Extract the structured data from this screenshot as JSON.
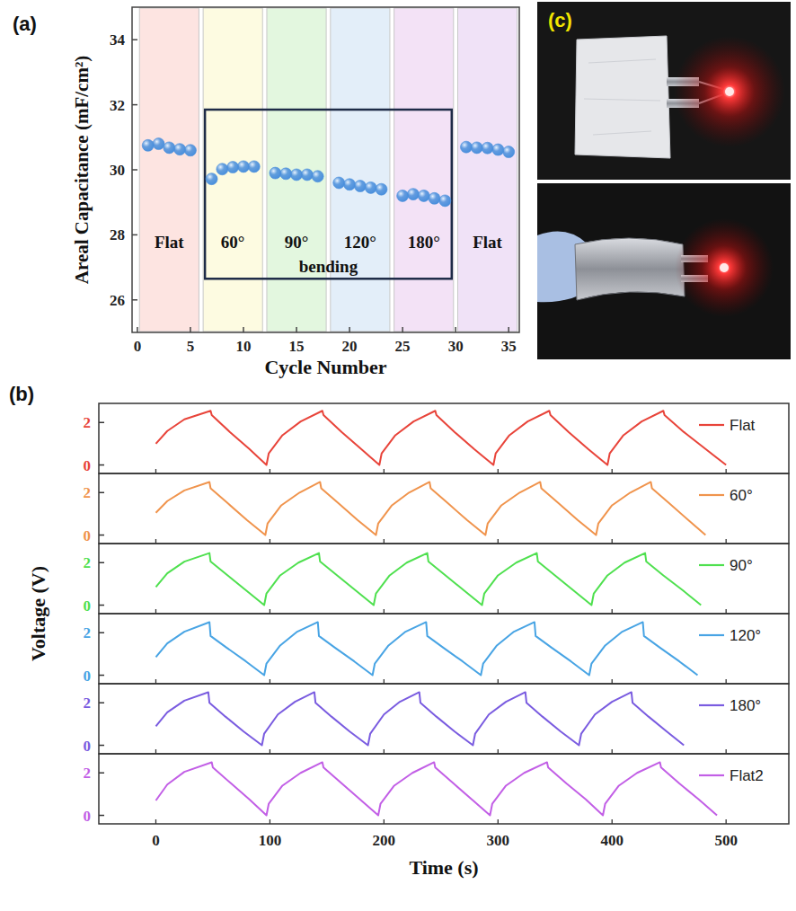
{
  "chart_data": [
    {
      "type": "scatter",
      "label": "(a)",
      "x_label": "Cycle Number",
      "y_label": "Areal Capacitance (mF/cm²)",
      "xlim": [
        -0.5,
        36
      ],
      "ylim": [
        25,
        35
      ],
      "xticks": [
        0,
        5,
        10,
        15,
        20,
        25,
        30,
        35
      ],
      "yticks": [
        26,
        28,
        30,
        32,
        34
      ],
      "color": "#4a8fdc",
      "marker": "circle",
      "annotations": [
        "bending"
      ],
      "series": [
        {
          "name": "Flat",
          "color": "#fde4e1",
          "x": [
            1,
            2,
            3,
            4,
            5
          ],
          "values": [
            30.75,
            30.8,
            30.68,
            30.63,
            30.6
          ]
        },
        {
          "name": "60°",
          "color": "#fdfbe1",
          "x": [
            7,
            8,
            9,
            10,
            11
          ],
          "values": [
            29.72,
            30.02,
            30.08,
            30.1,
            30.1
          ]
        },
        {
          "name": "90°",
          "color": "#e3f7df",
          "x": [
            13,
            14,
            15,
            16,
            17
          ],
          "values": [
            29.9,
            29.88,
            29.85,
            29.85,
            29.8
          ]
        },
        {
          "name": "120°",
          "color": "#e3eef9",
          "x": [
            19,
            20,
            21,
            22,
            23
          ],
          "values": [
            29.6,
            29.55,
            29.5,
            29.45,
            29.4
          ]
        },
        {
          "name": "180°",
          "color": "#f3e2f6",
          "x": [
            25,
            26,
            27,
            28,
            29
          ],
          "values": [
            29.2,
            29.25,
            29.2,
            29.12,
            29.05
          ]
        },
        {
          "name": "Flat",
          "color": "#f0e2f7",
          "x": [
            31,
            32,
            33,
            34,
            35
          ],
          "values": [
            30.7,
            30.68,
            30.67,
            30.62,
            30.55
          ]
        }
      ]
    },
    {
      "type": "line",
      "label": "(b)",
      "x_label": "Time (s)",
      "y_label": "Voltage (V)",
      "xlim": [
        -50,
        555
      ],
      "ylim": [
        -0.4,
        2.9
      ],
      "xticks": [
        0,
        100,
        200,
        300,
        400,
        500
      ],
      "yticks": [
        0,
        2
      ],
      "legend": "upper right",
      "series": [
        {
          "name": "Flat",
          "color": "#e8443a",
          "x": [
            0,
            10,
            25,
            48,
            49,
            65,
            82,
            97,
            99,
            111,
            127,
            146,
            147,
            163,
            180,
            196,
            198,
            210,
            226,
            245,
            246,
            262,
            279,
            296,
            298,
            310,
            326,
            345,
            346,
            362,
            379,
            396,
            398,
            410,
            426,
            445,
            446,
            463,
            482,
            500
          ],
          "values": [
            1.0,
            1.6,
            2.15,
            2.55,
            2.35,
            1.55,
            0.75,
            0,
            0.55,
            1.4,
            2.05,
            2.55,
            2.35,
            1.55,
            0.75,
            0,
            0.55,
            1.4,
            2.05,
            2.55,
            2.35,
            1.55,
            0.75,
            0,
            0.55,
            1.4,
            2.05,
            2.55,
            2.35,
            1.55,
            0.75,
            0,
            0.55,
            1.4,
            2.05,
            2.55,
            2.35,
            1.55,
            0.75,
            0
          ]
        },
        {
          "name": "60°",
          "color": "#f0944d",
          "x": [
            0,
            10,
            25,
            47,
            48,
            63,
            80,
            96,
            98,
            110,
            126,
            144,
            145,
            160,
            177,
            193,
            195,
            207,
            222,
            240,
            241,
            256,
            273,
            289,
            291,
            303,
            319,
            337,
            338,
            353,
            370,
            386,
            388,
            400,
            416,
            434,
            435,
            450,
            467,
            482
          ],
          "values": [
            1.05,
            1.6,
            2.1,
            2.5,
            2.2,
            1.5,
            0.7,
            0,
            0.55,
            1.4,
            2.0,
            2.5,
            2.2,
            1.5,
            0.7,
            0,
            0.55,
            1.4,
            2.0,
            2.5,
            2.2,
            1.5,
            0.7,
            0,
            0.55,
            1.4,
            2.0,
            2.5,
            2.2,
            1.5,
            0.7,
            0,
            0.55,
            1.4,
            2.0,
            2.5,
            2.2,
            1.5,
            0.7,
            0
          ]
        },
        {
          "name": "90°",
          "color": "#4fe04f",
          "x": [
            0,
            10,
            25,
            47,
            48,
            63,
            79,
            95,
            97,
            109,
            125,
            143,
            144,
            159,
            175,
            191,
            193,
            205,
            220,
            238,
            239,
            254,
            270,
            286,
            288,
            300,
            316,
            334,
            335,
            350,
            366,
            382,
            384,
            396,
            411,
            429,
            430,
            445,
            462,
            478
          ],
          "values": [
            0.85,
            1.5,
            2.05,
            2.45,
            2.05,
            1.4,
            0.7,
            0,
            0.55,
            1.4,
            2.0,
            2.45,
            2.05,
            1.4,
            0.7,
            0,
            0.55,
            1.4,
            2.0,
            2.45,
            2.05,
            1.4,
            0.7,
            0,
            0.55,
            1.4,
            2.0,
            2.45,
            2.05,
            1.4,
            0.7,
            0,
            0.55,
            1.4,
            2.0,
            2.45,
            2.05,
            1.4,
            0.7,
            0
          ]
        },
        {
          "name": "120°",
          "color": "#48a4e4",
          "x": [
            0,
            10,
            25,
            47,
            48,
            62,
            79,
            95,
            97,
            109,
            124,
            142,
            143,
            157,
            174,
            190,
            192,
            204,
            219,
            237,
            238,
            252,
            269,
            285,
            287,
            299,
            314,
            332,
            333,
            347,
            364,
            380,
            382,
            394,
            409,
            427,
            428,
            442,
            459,
            475
          ],
          "values": [
            0.85,
            1.5,
            2.05,
            2.5,
            1.85,
            1.3,
            0.65,
            0,
            0.55,
            1.4,
            2.05,
            2.5,
            1.85,
            1.3,
            0.65,
            0,
            0.55,
            1.4,
            2.05,
            2.5,
            1.85,
            1.3,
            0.65,
            0,
            0.55,
            1.4,
            2.05,
            2.5,
            1.85,
            1.3,
            0.65,
            0,
            0.55,
            1.4,
            2.05,
            2.5,
            1.85,
            1.3,
            0.65,
            0
          ]
        },
        {
          "name": "180°",
          "color": "#7a5ce0",
          "x": [
            0,
            10,
            25,
            46,
            47,
            61,
            77,
            93,
            95,
            107,
            122,
            139,
            140,
            154,
            170,
            186,
            188,
            200,
            214,
            231,
            232,
            246,
            262,
            278,
            280,
            292,
            307,
            324,
            325,
            339,
            355,
            371,
            373,
            385,
            400,
            417,
            418,
            432,
            448,
            463
          ],
          "values": [
            0.9,
            1.55,
            2.1,
            2.5,
            2.0,
            1.35,
            0.65,
            0,
            0.55,
            1.45,
            2.05,
            2.5,
            2.0,
            1.35,
            0.65,
            0,
            0.55,
            1.45,
            2.05,
            2.5,
            2.0,
            1.35,
            0.65,
            0,
            0.55,
            1.45,
            2.05,
            2.5,
            2.0,
            1.35,
            0.65,
            0,
            0.55,
            1.45,
            2.05,
            2.5,
            2.0,
            1.35,
            0.65,
            0
          ]
        },
        {
          "name": "Flat2",
          "color": "#c25fe6",
          "x": [
            0,
            10,
            25,
            49,
            50,
            66,
            82,
            97,
            99,
            111,
            127,
            146,
            147,
            163,
            179,
            195,
            197,
            209,
            225,
            244,
            245,
            261,
            277,
            293,
            295,
            307,
            323,
            343,
            344,
            360,
            377,
            392,
            394,
            406,
            422,
            442,
            443,
            459,
            476,
            492
          ],
          "values": [
            0.7,
            1.45,
            2.05,
            2.5,
            2.25,
            1.5,
            0.75,
            0,
            0.55,
            1.4,
            2.0,
            2.5,
            2.25,
            1.5,
            0.75,
            0,
            0.55,
            1.4,
            2.0,
            2.5,
            2.25,
            1.5,
            0.75,
            0,
            0.55,
            1.4,
            2.0,
            2.5,
            2.25,
            1.5,
            0.75,
            0,
            0.55,
            1.4,
            2.0,
            2.5,
            2.25,
            1.5,
            0.75,
            0
          ]
        }
      ]
    }
  ],
  "photo_panel": {
    "label": "(c)"
  }
}
